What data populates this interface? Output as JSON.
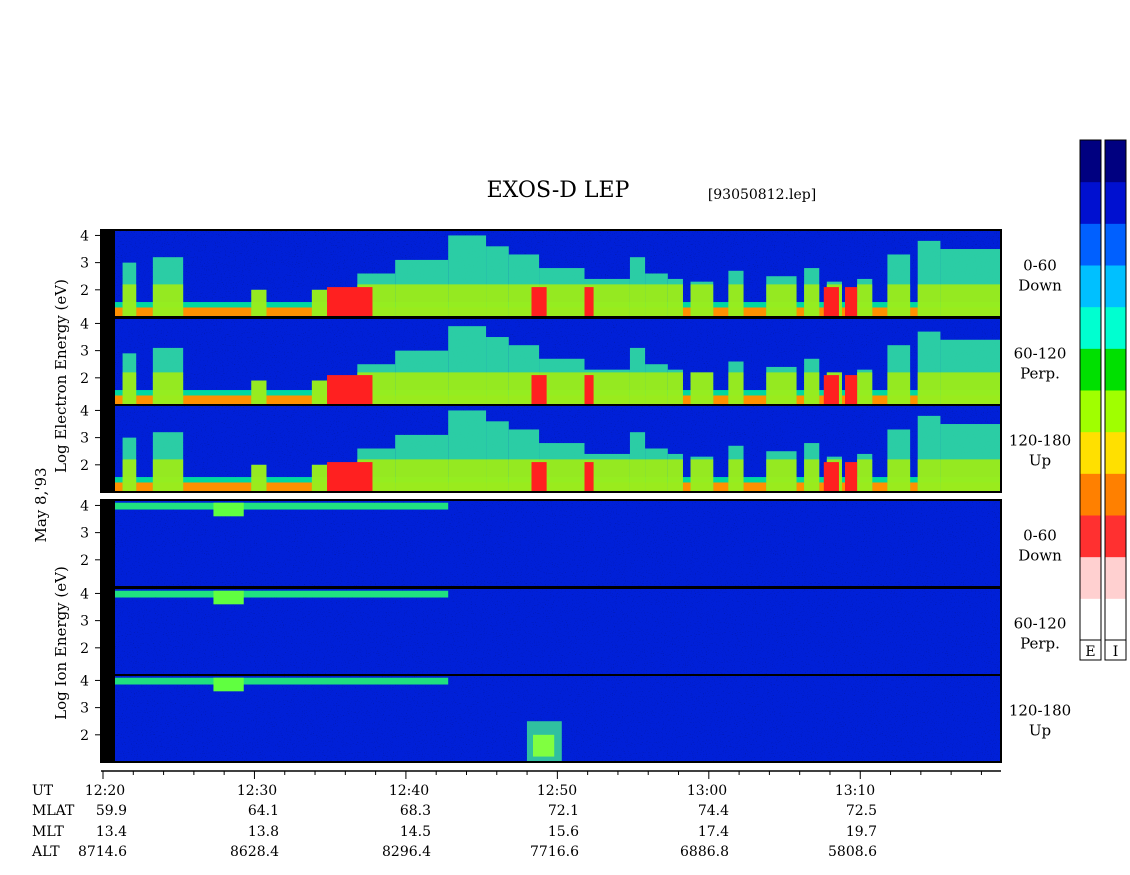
{
  "title": "EXOS-D LEP",
  "file": "[93050812.lep]",
  "date_label": "May  8,'93",
  "electron_axis_label": "Log  Electron  Energy  (eV)",
  "ion_axis_label": "Log  Ion  Energy  (eV)",
  "colorbar": {
    "label_left": "E",
    "label_right": "I",
    "colors": [
      "#ffffff",
      "#ffd0d0",
      "#ff3030",
      "#ff8000",
      "#ffe000",
      "#a0ff00",
      "#00e000",
      "#00ffd0",
      "#00c0ff",
      "#0060ff",
      "#0010d0",
      "#000080"
    ]
  },
  "panel_ticks": [
    "2",
    "3",
    "4"
  ],
  "panels": [
    {
      "group": "electron",
      "pitch": "0-60",
      "dir": "Down"
    },
    {
      "group": "electron",
      "pitch": "60-120",
      "dir": "Perp."
    },
    {
      "group": "electron",
      "pitch": "120-180",
      "dir": "Up"
    },
    {
      "group": "ion",
      "pitch": "0-60",
      "dir": "Down"
    },
    {
      "group": "ion",
      "pitch": "60-120",
      "dir": "Perp."
    },
    {
      "group": "ion",
      "pitch": "120-180",
      "dir": "Up"
    }
  ],
  "orbit_table": {
    "row_labels": [
      "UT",
      "MLAT",
      "MLT",
      "ALT"
    ],
    "columns": [
      {
        "UT": "12:20",
        "MLAT": "59.9",
        "MLT": "13.4",
        "ALT": "8714.6"
      },
      {
        "UT": "12:30",
        "MLAT": "64.1",
        "MLT": "13.8",
        "ALT": "8628.4"
      },
      {
        "UT": "12:40",
        "MLAT": "68.3",
        "MLT": "14.5",
        "ALT": "8296.4"
      },
      {
        "UT": "12:50",
        "MLAT": "72.1",
        "MLT": "15.6",
        "ALT": "7716.6"
      },
      {
        "UT": "13:00",
        "MLAT": "74.4",
        "MLT": "17.4",
        "ALT": "6886.8"
      },
      {
        "UT": "13:10",
        "MLAT": "72.5",
        "MLT": "19.7",
        "ALT": "5808.6"
      }
    ]
  },
  "chart_data": {
    "type": "heatmap",
    "title": "EXOS-D LEP",
    "x_label": "UT",
    "x_ticks": [
      "12:20",
      "12:30",
      "12:40",
      "12:50",
      "13:00",
      "13:10"
    ],
    "x_minutes_range": [
      "12:20",
      "13:18.5"
    ],
    "y_scale": "log10 energy (eV)",
    "y_ticks": [
      2,
      3,
      4
    ],
    "ylim": [
      1,
      4.2
    ],
    "panels": [
      {
        "species": "Electron",
        "pitch_angle": "0-60",
        "direction": "Down"
      },
      {
        "species": "Electron",
        "pitch_angle": "60-120",
        "direction": "Perp."
      },
      {
        "species": "Electron",
        "pitch_angle": "120-180",
        "direction": "Up"
      },
      {
        "species": "Ion",
        "pitch_angle": "0-60",
        "direction": "Down"
      },
      {
        "species": "Ion",
        "pitch_angle": "60-120",
        "direction": "Perp."
      },
      {
        "species": "Ion",
        "pitch_angle": "120-180",
        "direction": "Up"
      }
    ],
    "colorbar_labels": [
      "E",
      "I"
    ]
  }
}
